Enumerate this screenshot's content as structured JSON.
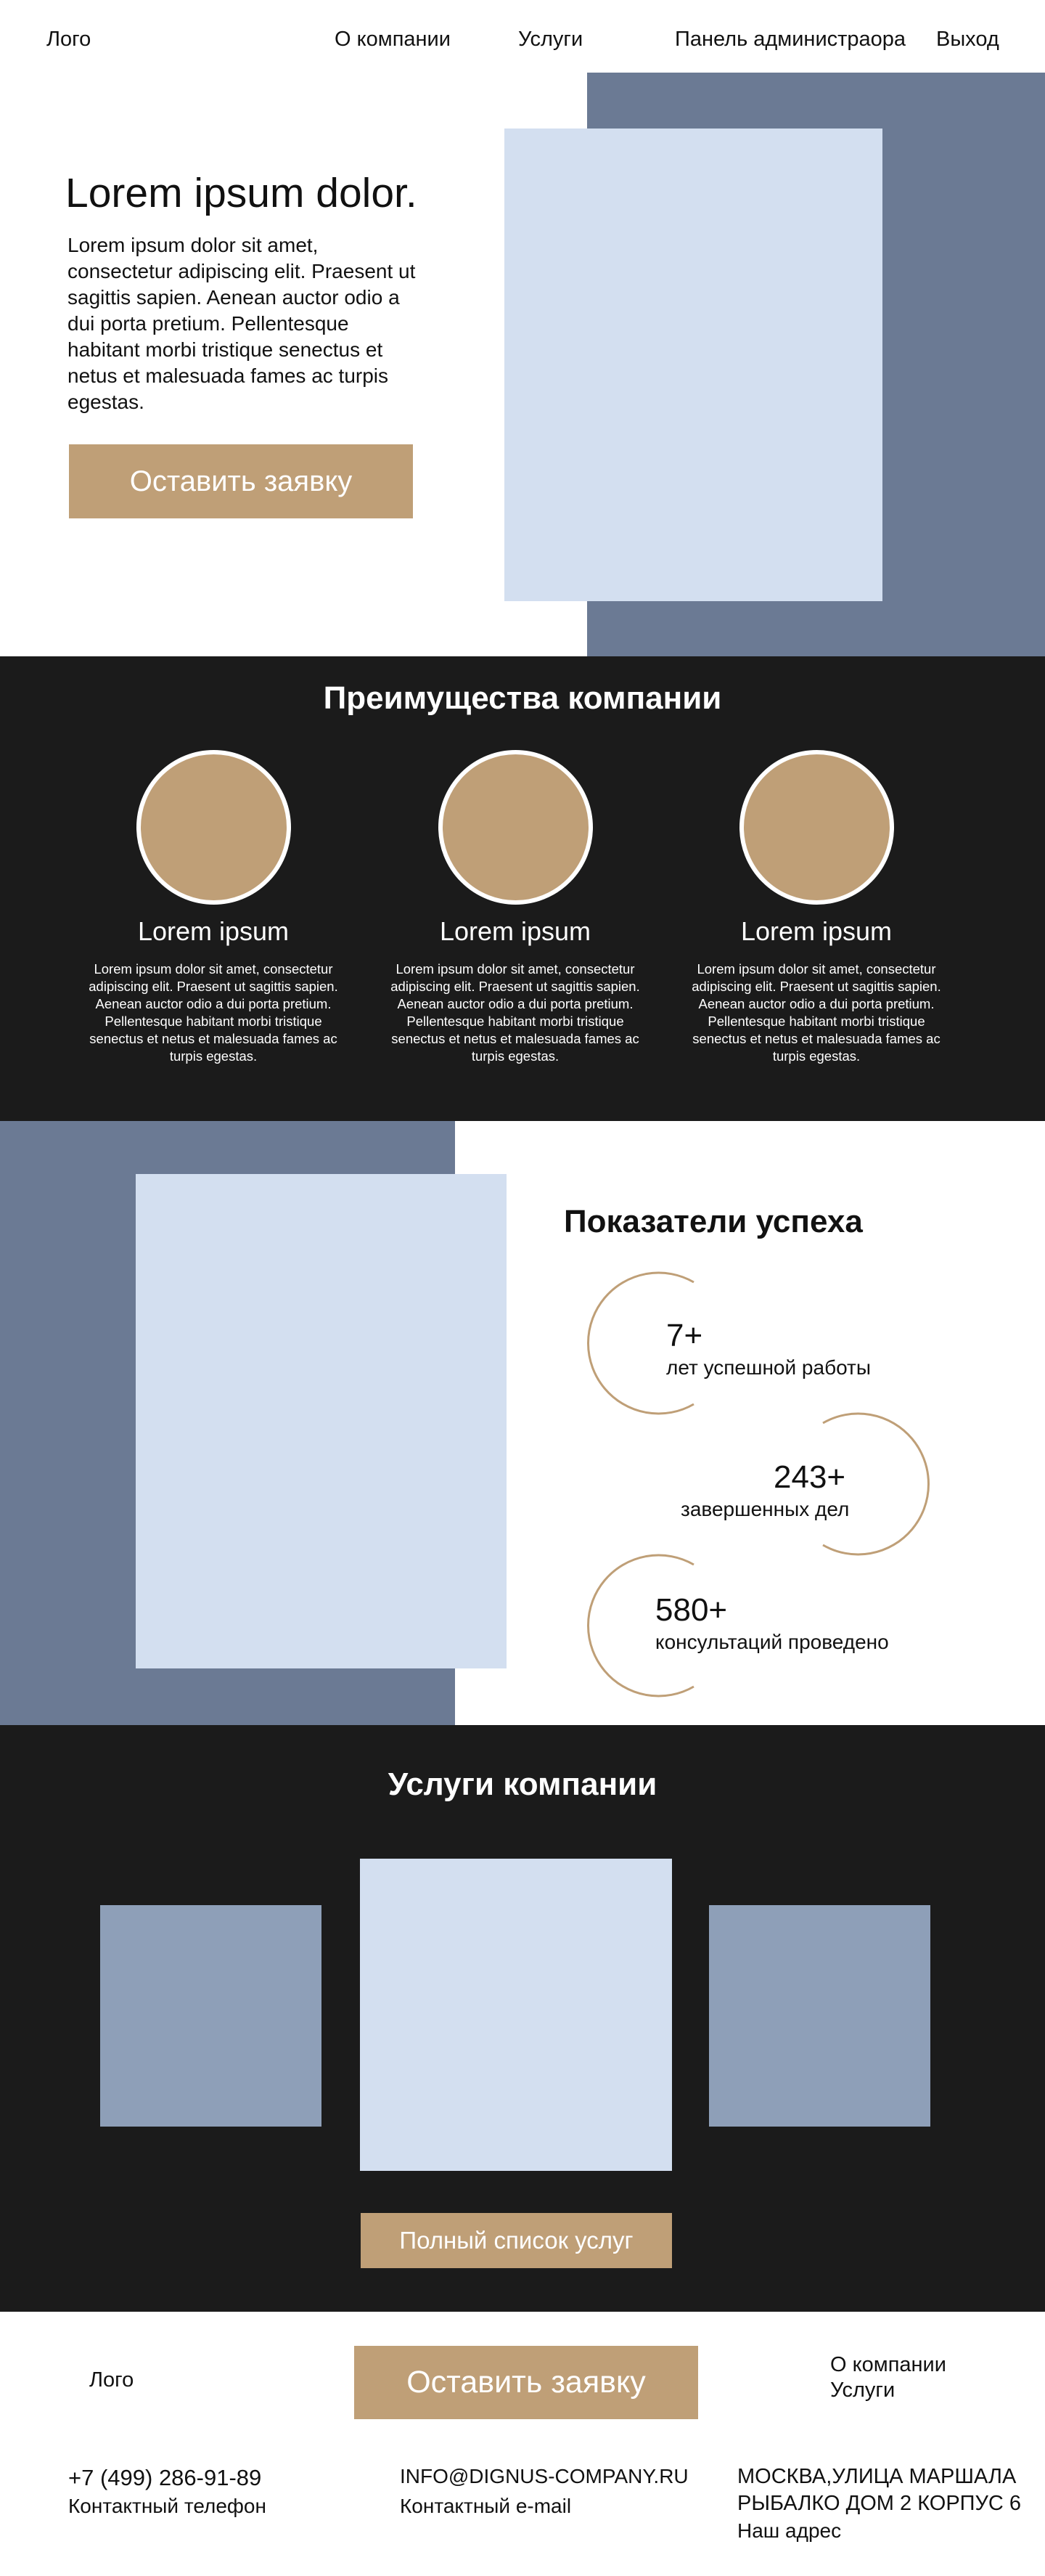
{
  "header": {
    "logo": "Лого",
    "nav": [
      {
        "label": "О компании"
      },
      {
        "label": "Услуги"
      },
      {
        "label": "Панель администраора"
      },
      {
        "label": "Выход"
      }
    ]
  },
  "hero": {
    "title": "Lorem ipsum dolor.",
    "text": "Lorem ipsum dolor sit amet, consectetur adipiscing elit. Praesent ut sagittis sapien. Aenean auctor odio a dui porta pretium. Pellentesque habitant morbi tristique senectus et netus et malesuada fames ac turpis egestas.",
    "button_label": "Оставить заявку"
  },
  "advantages": {
    "title": "Преимущества компании",
    "items": [
      {
        "name": "Lorem ipsum",
        "text": "Lorem ipsum dolor sit amet, consectetur adipiscing elit. Praesent ut sagittis sapien. Aenean auctor odio a dui porta pretium. Pellentesque habitant morbi tristique senectus et netus et malesuada fames ac turpis egestas."
      },
      {
        "name": "Lorem ipsum",
        "text": "Lorem ipsum dolor sit amet, consectetur adipiscing elit. Praesent ut sagittis sapien. Aenean auctor odio a dui porta pretium. Pellentesque habitant morbi tristique senectus et netus et malesuada fames ac turpis egestas."
      },
      {
        "name": "Lorem ipsum",
        "text": "Lorem ipsum dolor sit amet, consectetur adipiscing elit. Praesent ut sagittis sapien. Aenean auctor odio a dui porta pretium. Pellentesque habitant morbi tristique senectus et netus et malesuada fames ac turpis egestas."
      }
    ]
  },
  "stats": {
    "title": "Показатели успеха",
    "items": [
      {
        "value": "7+",
        "label": "лет успешной работы"
      },
      {
        "value": "243+",
        "label": "завершенных дел"
      },
      {
        "value": "580+",
        "label": "консультаций проведено"
      }
    ]
  },
  "services": {
    "title": "Услуги компании",
    "button_label": "Полный список услуг"
  },
  "footer": {
    "logo": "Лого",
    "button_label": "Оставить заявку",
    "links": [
      {
        "label": "О компании"
      },
      {
        "label": "Услуги"
      }
    ],
    "phone": {
      "value": "+7 (499) 286-91-89",
      "label": "Контактный телефон"
    },
    "email": {
      "value": "INFO@DIGNUS-COMPANY.RU",
      "label": "Контактный e-mail"
    },
    "address": {
      "line1": "МОСКВА,УЛИЦА МАРШАЛА",
      "line2": "РЫБАЛКО ДОМ 2 КОРПУС 6",
      "label": "Наш адрес"
    }
  },
  "colors": {
    "accent_gold": "#bf9f77",
    "slate": "#6b7a94",
    "light_blue": "#d3dff0",
    "dark": "#1b1b1b"
  }
}
